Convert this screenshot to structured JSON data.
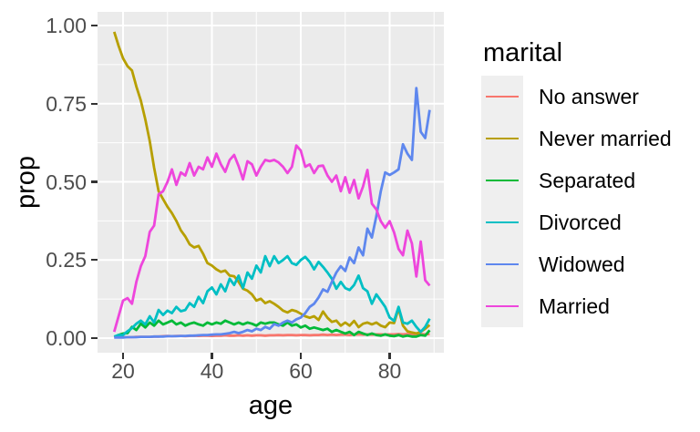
{
  "figure": {
    "background": "#FFFFFF",
    "panel_background": "#EBEBEB",
    "gridline_color": "#FFFFFF",
    "tick_mark_color": "#333333",
    "tick_label_color": "#4D4D4D",
    "axis_title_color": "#000000"
  },
  "chart_data": {
    "type": "line",
    "title": "",
    "xlabel": "age",
    "ylabel": "prop",
    "legend_title": "marital",
    "legend_position": "right",
    "grid": true,
    "xlim": [
      14.5,
      92.2
    ],
    "ylim": [
      -0.047,
      1.044
    ],
    "x_ticks": [
      {
        "value": 20,
        "label": "20"
      },
      {
        "value": 40,
        "label": "40"
      },
      {
        "value": 60,
        "label": "60"
      },
      {
        "value": 80,
        "label": "80"
      }
    ],
    "y_ticks": [
      {
        "value": 0.0,
        "label": "0.00"
      },
      {
        "value": 0.25,
        "label": "0.25"
      },
      {
        "value": 0.5,
        "label": "0.50"
      },
      {
        "value": 0.75,
        "label": "0.75"
      },
      {
        "value": 1.0,
        "label": "1.00"
      }
    ],
    "x_minor_ticks": [
      30,
      50,
      70,
      90
    ],
    "y_minor_ticks": [
      0.125,
      0.375,
      0.625,
      0.875
    ],
    "ages": [
      18,
      19,
      20,
      21,
      22,
      23,
      24,
      25,
      26,
      27,
      28,
      29,
      30,
      31,
      32,
      33,
      34,
      35,
      36,
      37,
      38,
      39,
      40,
      41,
      42,
      43,
      44,
      45,
      46,
      47,
      48,
      49,
      50,
      51,
      52,
      53,
      54,
      55,
      56,
      57,
      58,
      59,
      60,
      61,
      62,
      63,
      64,
      65,
      66,
      67,
      68,
      69,
      70,
      71,
      72,
      73,
      74,
      75,
      76,
      77,
      78,
      79,
      80,
      81,
      82,
      83,
      84,
      85,
      86,
      87,
      88,
      89
    ],
    "series": [
      {
        "name": "No answer",
        "key": "no-answer",
        "color": "#F8766D",
        "values": [
          0.003,
          0.003,
          0.003,
          0.003,
          0.003,
          0.004,
          0.004,
          0.004,
          0.004,
          0.005,
          0.005,
          0.006,
          0.007,
          0.006,
          0.007,
          0.007,
          0.006,
          0.007,
          0.008,
          0.007,
          0.008,
          0.008,
          0.007,
          0.008,
          0.008,
          0.009,
          0.008,
          0.008,
          0.009,
          0.008,
          0.009,
          0.008,
          0.009,
          0.009,
          0.008,
          0.009,
          0.009,
          0.01,
          0.009,
          0.01,
          0.01,
          0.009,
          0.01,
          0.01,
          0.009,
          0.01,
          0.01,
          0.011,
          0.01,
          0.011,
          0.01,
          0.011,
          0.011,
          0.01,
          0.011,
          0.012,
          0.011,
          0.012,
          0.011,
          0.012,
          0.012,
          0.011,
          0.012,
          0.012,
          0.013,
          0.012,
          0.013,
          0.012,
          0.013,
          0.013,
          0.012,
          0.013
        ]
      },
      {
        "name": "Never married",
        "key": "never-married",
        "color": "#B79F00",
        "values": [
          0.98,
          0.935,
          0.895,
          0.87,
          0.856,
          0.805,
          0.76,
          0.7,
          0.63,
          0.545,
          0.47,
          0.445,
          0.42,
          0.4,
          0.375,
          0.345,
          0.325,
          0.3,
          0.29,
          0.295,
          0.27,
          0.24,
          0.232,
          0.22,
          0.212,
          0.216,
          0.2,
          0.198,
          0.18,
          0.158,
          0.152,
          0.14,
          0.12,
          0.126,
          0.112,
          0.118,
          0.11,
          0.1,
          0.088,
          0.082,
          0.09,
          0.086,
          0.078,
          0.07,
          0.065,
          0.07,
          0.058,
          0.085,
          0.065,
          0.052,
          0.056,
          0.04,
          0.05,
          0.04,
          0.055,
          0.035,
          0.046,
          0.05,
          0.044,
          0.05,
          0.04,
          0.035,
          0.05,
          0.048,
          0.095,
          0.04,
          0.022,
          0.018,
          0.015,
          0.02,
          0.03,
          0.042
        ]
      },
      {
        "name": "Separated",
        "key": "separated",
        "color": "#00BA38",
        "values": [
          0.004,
          0.01,
          0.015,
          0.016,
          0.036,
          0.026,
          0.046,
          0.034,
          0.05,
          0.04,
          0.056,
          0.044,
          0.05,
          0.056,
          0.044,
          0.05,
          0.04,
          0.046,
          0.05,
          0.044,
          0.04,
          0.05,
          0.044,
          0.05,
          0.046,
          0.056,
          0.05,
          0.044,
          0.05,
          0.044,
          0.05,
          0.046,
          0.04,
          0.05,
          0.046,
          0.05,
          0.05,
          0.044,
          0.04,
          0.05,
          0.04,
          0.044,
          0.034,
          0.04,
          0.03,
          0.034,
          0.03,
          0.026,
          0.03,
          0.02,
          0.026,
          0.02,
          0.015,
          0.02,
          0.01,
          0.02,
          0.015,
          0.01,
          0.015,
          0.01,
          0.008,
          0.012,
          0.008,
          0.006,
          0.01,
          0.005,
          0.008,
          0.005,
          0.005,
          0.01,
          0.008,
          0.025
        ]
      },
      {
        "name": "Divorced",
        "key": "divorced",
        "color": "#00BFC4",
        "values": [
          0.005,
          0.01,
          0.01,
          0.022,
          0.032,
          0.046,
          0.056,
          0.044,
          0.07,
          0.05,
          0.09,
          0.074,
          0.088,
          0.08,
          0.1,
          0.086,
          0.09,
          0.112,
          0.1,
          0.132,
          0.112,
          0.15,
          0.162,
          0.14,
          0.172,
          0.15,
          0.19,
          0.17,
          0.2,
          0.16,
          0.21,
          0.19,
          0.232,
          0.21,
          0.262,
          0.23,
          0.262,
          0.24,
          0.25,
          0.262,
          0.24,
          0.234,
          0.25,
          0.26,
          0.244,
          0.22,
          0.244,
          0.228,
          0.21,
          0.19,
          0.158,
          0.18,
          0.16,
          0.154,
          0.17,
          0.2,
          0.16,
          0.15,
          0.11,
          0.14,
          0.12,
          0.1,
          0.066,
          0.055,
          0.1,
          0.05,
          0.046,
          0.056,
          0.036,
          0.02,
          0.036,
          0.062
        ]
      },
      {
        "name": "Widowed",
        "key": "widowed",
        "color": "#5E87EE",
        "values": [
          0.002,
          0.002,
          0.002,
          0.003,
          0.003,
          0.003,
          0.004,
          0.004,
          0.004,
          0.005,
          0.005,
          0.005,
          0.006,
          0.006,
          0.006,
          0.007,
          0.007,
          0.008,
          0.008,
          0.009,
          0.01,
          0.01,
          0.011,
          0.012,
          0.012,
          0.014,
          0.016,
          0.02,
          0.016,
          0.02,
          0.026,
          0.022,
          0.03,
          0.026,
          0.036,
          0.03,
          0.045,
          0.04,
          0.05,
          0.056,
          0.05,
          0.06,
          0.066,
          0.08,
          0.1,
          0.11,
          0.13,
          0.156,
          0.148,
          0.18,
          0.21,
          0.23,
          0.215,
          0.258,
          0.24,
          0.29,
          0.265,
          0.35,
          0.322,
          0.39,
          0.47,
          0.53,
          0.522,
          0.53,
          0.54,
          0.62,
          0.59,
          0.57,
          0.8,
          0.66,
          0.64,
          0.73
        ]
      },
      {
        "name": "Married",
        "key": "married",
        "color": "#EE46DC",
        "values": [
          0.02,
          0.07,
          0.12,
          0.128,
          0.11,
          0.18,
          0.23,
          0.262,
          0.34,
          0.36,
          0.46,
          0.47,
          0.5,
          0.54,
          0.49,
          0.53,
          0.52,
          0.56,
          0.52,
          0.548,
          0.54,
          0.578,
          0.548,
          0.59,
          0.556,
          0.532,
          0.57,
          0.586,
          0.55,
          0.508,
          0.566,
          0.556,
          0.52,
          0.548,
          0.57,
          0.566,
          0.57,
          0.562,
          0.548,
          0.528,
          0.548,
          0.616,
          0.6,
          0.548,
          0.556,
          0.528,
          0.55,
          0.552,
          0.52,
          0.5,
          0.52,
          0.47,
          0.515,
          0.465,
          0.506,
          0.447,
          0.485,
          0.538,
          0.43,
          0.412,
          0.374,
          0.353,
          0.374,
          0.338,
          0.285,
          0.265,
          0.344,
          0.303,
          0.197,
          0.309,
          0.185,
          0.168
        ]
      }
    ]
  }
}
